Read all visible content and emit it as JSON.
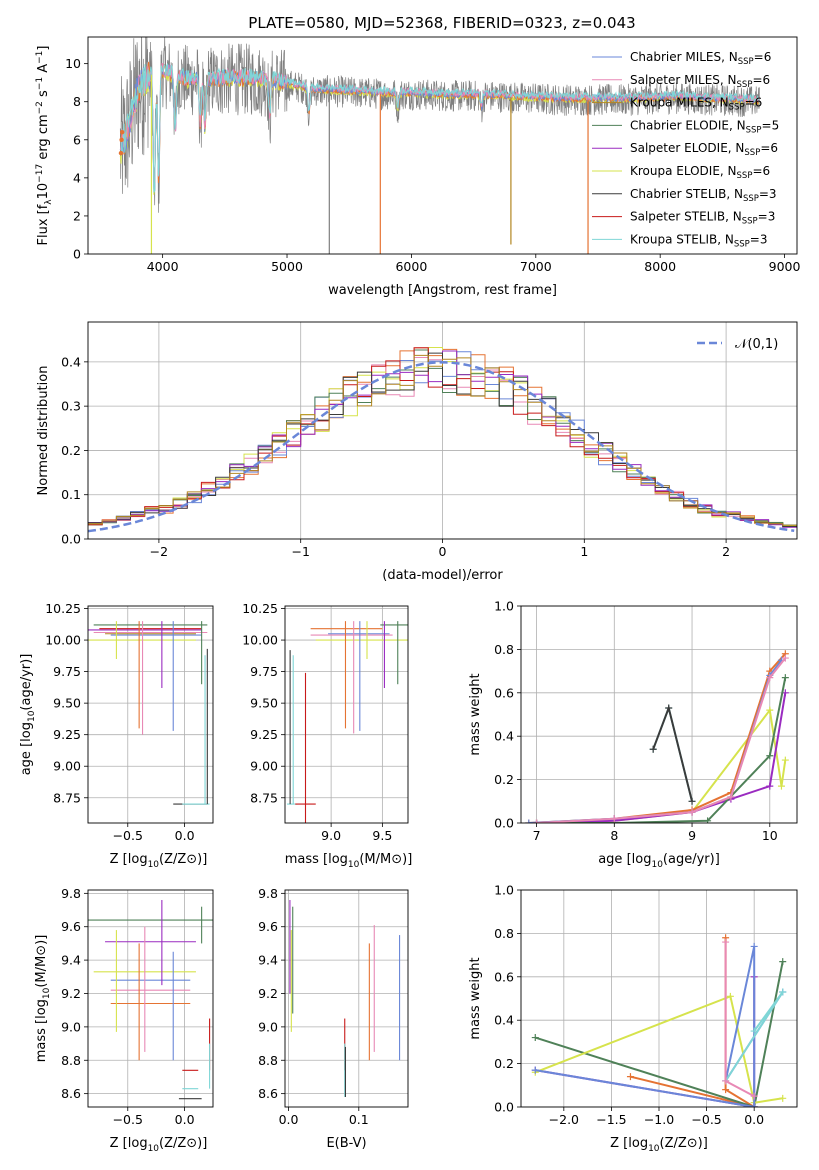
{
  "title": "PLATE=0580, MJD=52368, FIBERID=0323, z=0.043",
  "colors": {
    "Chabrier MILES": "#6a87d8",
    "Salpeter MILES": "#e889b5",
    "Kroupa MILES": "#b38622",
    "Chabrier ELODIE": "#4f8158",
    "Salpeter ELODIE": "#9a2bc0",
    "Kroupa ELODIE": "#d6e34c",
    "Chabrier STELIB": "#3b3b3b",
    "Salpeter STELIB": "#c81a1a",
    "Kroupa STELIB": "#7fd6d6",
    "data": "#7f7f7f",
    "orange": "#e57333",
    "normal": "#6a87d8"
  },
  "chart_data": [
    {
      "type": "line",
      "id": "spectrum",
      "xlabel": "wavelength [Angstrom, rest frame]",
      "ylabel_main": "Flux [f",
      "ylabel_sub": "λ",
      "ylabel_rest": "10",
      "ylabel_units": " erg cm",
      "xlim": [
        3400,
        9100
      ],
      "ylim": [
        0,
        11.4
      ],
      "xticks": [
        4000,
        5000,
        6000,
        7000,
        8000,
        9000
      ],
      "yticks": [
        0,
        2,
        4,
        6,
        8,
        10
      ],
      "legend_position": "right",
      "legend": [
        {
          "name": "Chabrier MILES",
          "nssp": "6"
        },
        {
          "name": "Salpeter MILES",
          "nssp": "6"
        },
        {
          "name": "Kroupa MILES",
          "nssp": "6"
        },
        {
          "name": "Chabrier ELODIE",
          "nssp": "5"
        },
        {
          "name": "Salpeter ELODIE",
          "nssp": "6"
        },
        {
          "name": "Kroupa ELODIE",
          "nssp": "6"
        },
        {
          "name": "Chabrier STELIB",
          "nssp": "3"
        },
        {
          "name": "Salpeter STELIB",
          "nssp": "3"
        },
        {
          "name": "Kroupa STELIB",
          "nssp": "3"
        }
      ],
      "continuum": {
        "x": [
          3660,
          3700,
          3750,
          3800,
          3900,
          4000,
          4100,
          4200,
          4400,
          4600,
          4800,
          5000,
          5200,
          5500,
          5800,
          6000,
          6300,
          6600,
          6900,
          7200,
          7500,
          7800,
          8100,
          8400,
          8800
        ],
        "y": [
          5.4,
          6.0,
          7.2,
          8.6,
          9.4,
          9.6,
          9.3,
          9.1,
          9.1,
          9.2,
          9.1,
          8.9,
          8.6,
          8.5,
          8.4,
          8.4,
          8.3,
          8.3,
          8.2,
          8.1,
          8.1,
          8.1,
          8.2,
          8.1,
          8.0
        ]
      },
      "absorption_lines": [
        {
          "x": 3933,
          "y": 3.0
        },
        {
          "x": 3968,
          "y": 3.6
        },
        {
          "x": 4101,
          "y": 6.5
        },
        {
          "x": 4304,
          "y": 6.7
        },
        {
          "x": 4340,
          "y": 6.6
        },
        {
          "x": 4861,
          "y": 7.2
        },
        {
          "x": 5175,
          "y": 7.4
        },
        {
          "x": 5890,
          "y": 7.6
        },
        {
          "x": 6563,
          "y": 7.6
        }
      ],
      "masked_spikes": [
        {
          "x": 3910,
          "y": 0.0,
          "series": "Kroupa ELODIE"
        },
        {
          "x": 5340,
          "y": 0.0,
          "series": "data"
        },
        {
          "x": 5750,
          "y": 0.0,
          "series": "orange"
        },
        {
          "x": 6800,
          "y": 0.5,
          "series": "Kroupa MILES"
        },
        {
          "x": 7420,
          "y": 0.0,
          "series": "orange"
        }
      ]
    },
    {
      "type": "line",
      "id": "residuals",
      "xlabel": "(data-model)/error",
      "ylabel": "Normed distribution",
      "xlim": [
        -2.5,
        2.5
      ],
      "ylim": [
        0,
        0.49
      ],
      "xticks": [
        -2,
        -1,
        0,
        1,
        2
      ],
      "yticks": [
        0.0,
        0.1,
        0.2,
        0.3,
        0.4
      ],
      "legend_position": "top-right",
      "legend_label": "𝒩(0,1)",
      "grid": true,
      "bin_width": 0.1
    },
    {
      "type": "scatter",
      "id": "age-vs-Z",
      "xlabel": "Z [log",
      "ylabel": "age  [log",
      "xlim": [
        -0.85,
        0.25
      ],
      "ylim": [
        8.55,
        10.27
      ],
      "xticks": [
        -0.5,
        0.0
      ],
      "yticks": [
        8.75,
        9.0,
        9.25,
        9.5,
        9.75,
        10.0,
        10.25
      ],
      "grid": true,
      "crosses": [
        {
          "series": "Chabrier STELIB",
          "x": 0.05,
          "xerr": 0.15,
          "y": 8.7,
          "yerr": 0.02
        },
        {
          "series": "Kroupa STELIB",
          "x": 0.1,
          "xerr": 0.12,
          "y": 8.7,
          "yerr": 0.02
        },
        {
          "series": "Chabrier ELODIE",
          "x": -0.3,
          "xerr": 0.5,
          "y": 10.12,
          "yerr": 0.02
        },
        {
          "series": "Kroupa ELODIE",
          "x": -0.4,
          "xerr": 0.5,
          "y": 10.0,
          "yerr": 0.02
        },
        {
          "series": "Kroupa MILES",
          "x": -0.3,
          "xerr": 0.4,
          "y": 10.05,
          "yerr": 0.02
        },
        {
          "series": "Salpeter MILES",
          "x": -0.3,
          "xerr": 0.5,
          "y": 10.06,
          "yerr": 0.02
        },
        {
          "series": "Chabrier MILES",
          "x": -0.25,
          "xerr": 0.4,
          "y": 10.04,
          "yerr": 0.02
        },
        {
          "series": "Salpeter ELODIE",
          "x": -0.35,
          "xerr": 0.5,
          "y": 10.08,
          "yerr": 0.02
        },
        {
          "series": "Salpeter STELIB",
          "x": -0.3,
          "xerr": 0.45,
          "y": 10.09,
          "yerr": 0.02
        }
      ],
      "vbars": [
        {
          "series": "Kroupa ELODIE",
          "x": -0.6,
          "y0": 9.85,
          "y1": 10.15
        },
        {
          "series": "orange",
          "x": -0.4,
          "y0": 9.3,
          "y1": 10.15
        },
        {
          "series": "Salpeter MILES",
          "x": -0.37,
          "y0": 9.25,
          "y1": 10.15
        },
        {
          "series": "Salpeter ELODIE",
          "x": -0.2,
          "y0": 9.62,
          "y1": 10.15
        },
        {
          "series": "Chabrier MILES",
          "x": -0.1,
          "y0": 9.28,
          "y1": 10.15
        },
        {
          "series": "Chabrier ELODIE",
          "x": 0.15,
          "y0": 9.65,
          "y1": 10.15
        },
        {
          "series": "Chabrier STELIB",
          "x": 0.2,
          "y0": 8.7,
          "y1": 9.93
        },
        {
          "series": "Kroupa STELIB",
          "x": 0.18,
          "y0": 8.7,
          "y1": 9.88
        }
      ]
    },
    {
      "type": "scatter",
      "id": "age-vs-mass",
      "xlabel": "mass [log",
      "xlim": [
        8.55,
        9.75
      ],
      "ylim": [
        8.55,
        10.27
      ],
      "xticks": [
        9.0,
        9.5
      ],
      "yticks": [
        8.75,
        9.0,
        9.25,
        9.5,
        9.75,
        10.0,
        10.25
      ],
      "grid": true,
      "crosses": [
        {
          "series": "Kroupa STELIB",
          "x": 8.62,
          "xerr": 0.05,
          "y": 8.7
        },
        {
          "series": "Salpeter STELIB",
          "x": 8.75,
          "xerr": 0.1,
          "y": 8.7
        },
        {
          "series": "Chabrier ELODIE",
          "x": 9.63,
          "xerr": 0.15,
          "y": 10.12
        },
        {
          "series": "orange",
          "x": 9.15,
          "xerr": 0.35,
          "y": 10.09
        },
        {
          "series": "Kroupa ELODIE",
          "x": 9.35,
          "xerr": 0.5,
          "y": 10.0
        },
        {
          "series": "Salpeter MILES",
          "x": 9.2,
          "xerr": 0.4,
          "y": 10.04
        },
        {
          "series": "Chabrier MILES",
          "x": 9.27,
          "xerr": 0.3,
          "y": 10.05
        }
      ],
      "vbars": [
        {
          "series": "Chabrier STELIB",
          "x": 8.6,
          "y0": 8.7,
          "y1": 9.92
        },
        {
          "series": "Kroupa STELIB",
          "x": 8.63,
          "y0": 8.7,
          "y1": 9.88
        },
        {
          "series": "Salpeter STELIB",
          "x": 8.75,
          "y0": 8.55,
          "y1": 9.74
        },
        {
          "series": "orange",
          "x": 9.14,
          "y0": 9.3,
          "y1": 10.15
        },
        {
          "series": "Salpeter MILES",
          "x": 9.22,
          "y0": 9.26,
          "y1": 10.15
        },
        {
          "series": "Chabrier MILES",
          "x": 9.28,
          "y0": 9.28,
          "y1": 10.15
        },
        {
          "series": "Kroupa ELODIE",
          "x": 9.35,
          "y0": 9.85,
          "y1": 10.15
        },
        {
          "series": "Salpeter ELODIE",
          "x": 9.52,
          "y0": 9.62,
          "y1": 10.15
        },
        {
          "series": "Chabrier ELODIE",
          "x": 9.65,
          "y0": 9.65,
          "y1": 10.15
        }
      ]
    },
    {
      "type": "line",
      "id": "massweight-vs-age",
      "xlabel": "age  [log",
      "ylabel": "mass weight",
      "xlim": [
        6.8,
        10.35
      ],
      "ylim": [
        0,
        1.0
      ],
      "xticks": [
        7,
        8,
        9,
        10
      ],
      "yticks": [
        0.0,
        0.2,
        0.4,
        0.6,
        0.8,
        1.0
      ],
      "grid": true,
      "series": [
        {
          "name": "Kroupa STELIB",
          "x": [
            8.5,
            8.7,
            9.0
          ],
          "y": [
            0.34,
            0.53,
            0.1
          ]
        },
        {
          "name": "Chabrier STELIB",
          "x": [
            8.5,
            8.7,
            9.0
          ],
          "y": [
            0.34,
            0.53,
            0.1
          ]
        },
        {
          "name": "Kroupa ELODIE",
          "x": [
            7.0,
            8.0,
            9.0,
            10.0,
            10.15,
            10.2
          ],
          "y": [
            0.0,
            0.01,
            0.05,
            0.52,
            0.17,
            0.29
          ]
        },
        {
          "name": "orange",
          "x": [
            6.9,
            8.0,
            9.0,
            9.5,
            10.0,
            10.2
          ],
          "y": [
            0.0,
            0.02,
            0.06,
            0.14,
            0.7,
            0.78
          ]
        },
        {
          "name": "Chabrier MILES",
          "x": [
            6.9,
            8.0,
            9.0,
            9.5,
            10.0,
            10.15
          ],
          "y": [
            0.0,
            0.02,
            0.05,
            0.12,
            0.68,
            0.75
          ]
        },
        {
          "name": "Salpeter ELODIE",
          "x": [
            7.0,
            8.0,
            9.0,
            9.5,
            10.0,
            10.2
          ],
          "y": [
            0.0,
            0.01,
            0.05,
            0.11,
            0.17,
            0.6
          ]
        },
        {
          "name": "Chabrier ELODIE",
          "x": [
            7.0,
            8.0,
            9.2,
            10.0,
            10.2
          ],
          "y": [
            0.0,
            0.0,
            0.01,
            0.31,
            0.67
          ]
        },
        {
          "name": "Salpeter MILES",
          "x": [
            7.0,
            8.0,
            9.0,
            9.5,
            10.0,
            10.2
          ],
          "y": [
            0.0,
            0.02,
            0.05,
            0.12,
            0.67,
            0.76
          ]
        }
      ]
    },
    {
      "type": "scatter",
      "id": "mass-vs-Z",
      "xlabel": "Z [log",
      "ylabel": "mass [log",
      "xlim": [
        -0.85,
        0.25
      ],
      "ylim": [
        8.52,
        9.82
      ],
      "xticks": [
        -0.5,
        0.0
      ],
      "yticks": [
        8.6,
        8.8,
        9.0,
        9.2,
        9.4,
        9.6,
        9.8
      ],
      "grid": true,
      "crosses": [
        {
          "series": "Chabrier ELODIE",
          "x": -0.3,
          "xerr": 0.55,
          "y": 9.64
        },
        {
          "series": "Salpeter ELODIE",
          "x": -0.3,
          "xerr": 0.4,
          "y": 9.51
        },
        {
          "series": "Kroupa ELODIE",
          "x": -0.35,
          "xerr": 0.45,
          "y": 9.33
        },
        {
          "series": "Chabrier MILES",
          "x": -0.3,
          "xerr": 0.35,
          "y": 9.28
        },
        {
          "series": "Salpeter MILES",
          "x": -0.3,
          "xerr": 0.35,
          "y": 9.22
        },
        {
          "series": "orange",
          "x": -0.3,
          "xerr": 0.35,
          "y": 9.14
        },
        {
          "series": "Salpeter STELIB",
          "x": 0.05,
          "xerr": 0.07,
          "y": 8.74
        },
        {
          "series": "Kroupa STELIB",
          "x": 0.05,
          "xerr": 0.07,
          "y": 8.63
        },
        {
          "series": "Chabrier STELIB",
          "x": 0.05,
          "xerr": 0.1,
          "y": 8.57
        }
      ],
      "vbars": [
        {
          "series": "Kroupa ELODIE",
          "x": -0.6,
          "y0": 8.97,
          "y1": 9.58
        },
        {
          "series": "orange",
          "x": -0.4,
          "y0": 8.8,
          "y1": 9.5
        },
        {
          "series": "Salpeter MILES",
          "x": -0.35,
          "y0": 8.85,
          "y1": 9.6
        },
        {
          "series": "Salpeter ELODIE",
          "x": -0.2,
          "y0": 9.25,
          "y1": 9.76
        },
        {
          "series": "Chabrier MILES",
          "x": -0.1,
          "y0": 8.8,
          "y1": 9.45
        },
        {
          "series": "Chabrier ELODIE",
          "x": 0.15,
          "y0": 9.5,
          "y1": 9.72
        },
        {
          "series": "Salpeter STELIB",
          "x": 0.22,
          "y0": 8.74,
          "y1": 9.05
        },
        {
          "series": "Kroupa STELIB",
          "x": 0.22,
          "y0": 8.63,
          "y1": 8.9
        }
      ]
    },
    {
      "type": "scatter",
      "id": "mass-vs-EBV",
      "xlabel": "E(B-V)",
      "xlim": [
        -0.005,
        0.17
      ],
      "ylim": [
        8.52,
        9.82
      ],
      "xticks": [
        0.0,
        0.1
      ],
      "yticks": [
        8.6,
        8.8,
        9.0,
        9.2,
        9.4,
        9.6,
        9.8
      ],
      "grid": true,
      "vbars": [
        {
          "series": "Salpeter ELODIE",
          "x": 0.002,
          "y0": 9.2,
          "y1": 9.76
        },
        {
          "series": "Kroupa ELODIE",
          "x": 0.004,
          "y0": 8.97,
          "y1": 9.58
        },
        {
          "series": "Chabrier ELODIE",
          "x": 0.006,
          "y0": 9.08,
          "y1": 9.72
        },
        {
          "series": "Salpeter STELIB",
          "x": 0.08,
          "y0": 8.74,
          "y1": 9.05
        },
        {
          "series": "Kroupa STELIB",
          "x": 0.08,
          "y0": 8.58,
          "y1": 8.9
        },
        {
          "series": "Chabrier STELIB",
          "x": 0.081,
          "y0": 8.58,
          "y1": 8.88
        },
        {
          "series": "orange",
          "x": 0.115,
          "y0": 8.8,
          "y1": 9.5
        },
        {
          "series": "Salpeter MILES",
          "x": 0.122,
          "y0": 8.85,
          "y1": 9.61
        },
        {
          "series": "Chabrier MILES",
          "x": 0.158,
          "y0": 8.8,
          "y1": 9.55
        }
      ]
    },
    {
      "type": "line",
      "id": "massweight-vs-Z",
      "xlabel": "Z [log",
      "ylabel": "mass weight",
      "xlim": [
        -2.45,
        0.45
      ],
      "ylim": [
        0,
        1.0
      ],
      "xticks": [
        -2.0,
        -1.5,
        -1.0,
        -0.5,
        0.0
      ],
      "yticks": [
        0.0,
        0.2,
        0.4,
        0.6,
        0.8,
        1.0
      ],
      "grid": true,
      "series": [
        {
          "name": "orange",
          "x": [
            -1.3,
            0.0,
            -0.3,
            -0.3
          ],
          "y": [
            0.14,
            0.0,
            0.08,
            0.78
          ]
        },
        {
          "name": "Chabrier ELODIE",
          "x": [
            -2.3,
            0.0,
            0.3
          ],
          "y": [
            0.32,
            0.0,
            0.67
          ]
        },
        {
          "name": "Salpeter ELODIE",
          "x": [
            -2.3,
            0.0,
            0.0
          ],
          "y": [
            0.17,
            0.0,
            0.6
          ]
        },
        {
          "name": "Kroupa ELODIE",
          "x": [
            -2.3,
            -0.25,
            0.0,
            0.3
          ],
          "y": [
            0.16,
            0.51,
            0.02,
            0.04
          ]
        },
        {
          "name": "Chabrier MILES",
          "x": [
            -2.3,
            0.0,
            0.0,
            -0.3,
            0.3
          ],
          "y": [
            0.17,
            0.0,
            0.74,
            0.12,
            0.53
          ]
        },
        {
          "name": "Kroupa STELIB",
          "x": [
            -0.3,
            0.3,
            0.0
          ],
          "y": [
            0.12,
            0.53,
            0.35
          ]
        },
        {
          "name": "Salpeter MILES",
          "x": [
            -0.3,
            -0.3,
            0.0
          ],
          "y": [
            0.76,
            0.12,
            0.05
          ]
        }
      ]
    }
  ]
}
